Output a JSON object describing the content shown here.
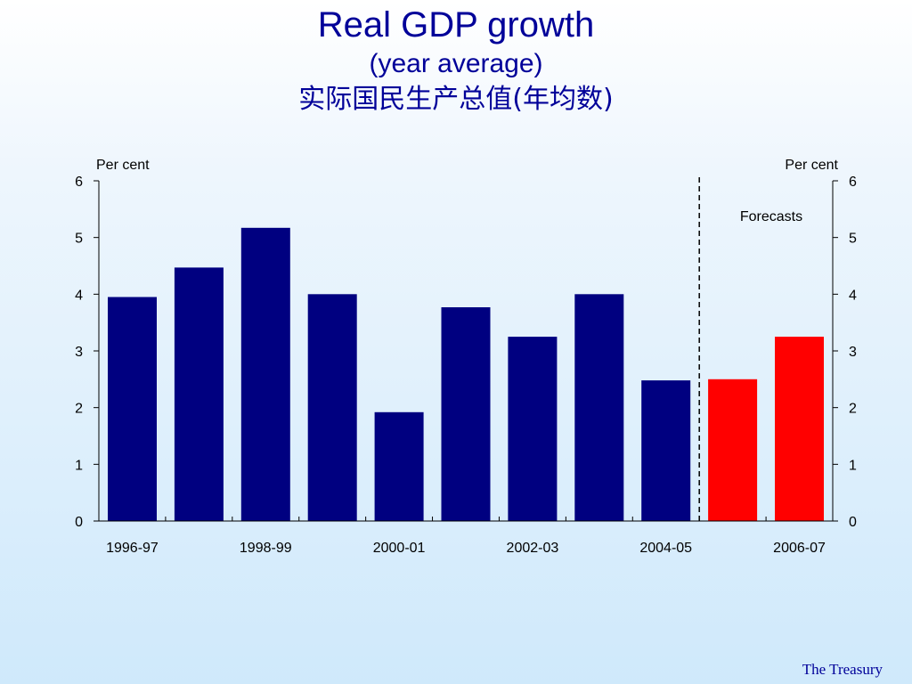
{
  "title": "Real GDP growth",
  "subtitle": "(year average)",
  "subtitle_cn": "实际国民生产总值(年均数)",
  "footer": "The Treasury",
  "chart_data": {
    "type": "bar",
    "categories": [
      "1996-97",
      "1997-98",
      "1998-99",
      "1999-00",
      "2000-01",
      "2001-02",
      "2002-03",
      "2003-04",
      "2004-05",
      "2005-06",
      "2006-07"
    ],
    "x_tick_labels": [
      "1996-97",
      "",
      "1998-99",
      "",
      "2000-01",
      "",
      "2002-03",
      "",
      "2004-05",
      "",
      "2006-07"
    ],
    "values": [
      3.95,
      4.47,
      5.17,
      4.0,
      1.92,
      3.77,
      3.25,
      4.0,
      2.48,
      2.5,
      3.25
    ],
    "forecast_flags": [
      false,
      false,
      false,
      false,
      false,
      false,
      false,
      false,
      false,
      true,
      true
    ],
    "colors": {
      "actual": "#000080",
      "forecast": "#ff0000"
    },
    "ylabel_left": "Per cent",
    "ylabel_right": "Per cent",
    "ylim": [
      0,
      6
    ],
    "yticks": [
      0,
      1,
      2,
      3,
      4,
      5,
      6
    ],
    "annotation": "Forecasts",
    "grid": false
  }
}
